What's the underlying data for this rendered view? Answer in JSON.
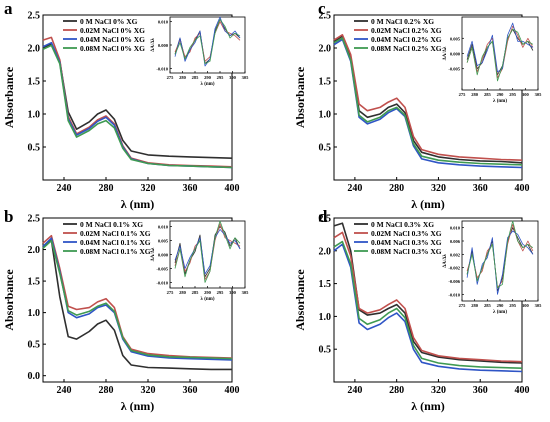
{
  "chart_data": [
    {
      "panel": "a",
      "type": "line",
      "xlabel": "λ (nm)",
      "ylabel": "Absorbance",
      "xlim": [
        220,
        400
      ],
      "ylim": [
        0,
        2.5
      ],
      "xticks": [
        240,
        280,
        320,
        360,
        400
      ],
      "yticks": [
        0.5,
        1.0,
        1.5,
        2.0,
        2.5
      ],
      "legend_placement": "top-center",
      "x": [
        220,
        228,
        236,
        244,
        252,
        264,
        272,
        280,
        288,
        296,
        304,
        320,
        340,
        360,
        380,
        400
      ],
      "series": [
        {
          "name": "0   M NaCl  0% XG",
          "color": "#2f2f2f",
          "values": [
            2.0,
            2.06,
            1.8,
            1.03,
            0.77,
            0.88,
            1.0,
            1.06,
            0.92,
            0.6,
            0.44,
            0.38,
            0.36,
            0.35,
            0.34,
            0.33
          ]
        },
        {
          "name": "0.02M NaCl  0% XG",
          "color": "#c0504d",
          "values": [
            2.12,
            2.16,
            1.82,
            0.96,
            0.7,
            0.8,
            0.91,
            0.97,
            0.85,
            0.52,
            0.33,
            0.26,
            0.23,
            0.22,
            0.21,
            0.2
          ]
        },
        {
          "name": "0.04M NaCl  0% XG",
          "color": "#2f55c6",
          "values": [
            2.02,
            2.08,
            1.78,
            0.93,
            0.68,
            0.78,
            0.89,
            0.95,
            0.83,
            0.5,
            0.32,
            0.25,
            0.22,
            0.21,
            0.2,
            0.19
          ]
        },
        {
          "name": "0.08M NaCl  0% XG",
          "color": "#3f9a52",
          "values": [
            1.98,
            2.04,
            1.76,
            0.9,
            0.65,
            0.75,
            0.85,
            0.9,
            0.79,
            0.48,
            0.31,
            0.25,
            0.22,
            0.21,
            0.2,
            0.19
          ]
        }
      ],
      "inset": {
        "ylabel": "ΔA/Δλ",
        "xlabel": "λ (nm)",
        "xlim": [
          275,
          305
        ],
        "ylim": [
          -0.012,
          0.012
        ],
        "xticks": [
          275,
          280,
          285,
          290,
          295,
          300,
          305
        ],
        "yticks": [
          -0.01,
          0.0,
          0.01
        ],
        "x": [
          277,
          279,
          281,
          283,
          285,
          287,
          289,
          291,
          293,
          295,
          297,
          299,
          301,
          303
        ],
        "series_values": [
          [
            -0.004,
            0.003,
            -0.006,
            -0.002,
            0.002,
            0.006,
            -0.008,
            -0.006,
            0.006,
            0.011,
            0.007,
            0.004,
            0.005,
            0.003
          ],
          [
            -0.003,
            0.002,
            -0.005,
            -0.003,
            0.003,
            0.005,
            -0.007,
            -0.005,
            0.005,
            0.01,
            0.006,
            0.005,
            0.004,
            0.002
          ],
          [
            -0.005,
            0.003,
            -0.007,
            -0.002,
            0.001,
            0.006,
            -0.009,
            -0.006,
            0.007,
            0.012,
            0.006,
            0.004,
            0.006,
            0.003
          ],
          [
            -0.004,
            0.001,
            -0.006,
            -0.001,
            0.002,
            0.004,
            -0.008,
            -0.007,
            0.005,
            0.011,
            0.008,
            0.003,
            0.005,
            0.004
          ]
        ]
      }
    },
    {
      "panel": "b",
      "type": "line",
      "xlabel": "λ (nm)",
      "ylabel": "Absorbance",
      "xlim": [
        220,
        400
      ],
      "ylim": [
        -0.1,
        2.5
      ],
      "xticks": [
        240,
        280,
        320,
        360,
        400
      ],
      "yticks": [
        0.0,
        0.5,
        1.0,
        1.5,
        2.0,
        2.5
      ],
      "legend_placement": "top-center",
      "x": [
        220,
        228,
        236,
        244,
        252,
        264,
        272,
        280,
        288,
        296,
        304,
        320,
        340,
        360,
        380,
        400
      ],
      "series": [
        {
          "name": "0   M NaCl  0.1% XG",
          "color": "#2f2f2f",
          "values": [
            2.05,
            2.15,
            1.25,
            0.62,
            0.58,
            0.7,
            0.82,
            0.88,
            0.72,
            0.32,
            0.17,
            0.13,
            0.12,
            0.11,
            0.1,
            0.1
          ]
        },
        {
          "name": "0.02M NaCl  0.1% XG",
          "color": "#c0504d",
          "values": [
            2.1,
            2.22,
            1.7,
            1.1,
            1.05,
            1.08,
            1.17,
            1.22,
            1.08,
            0.62,
            0.42,
            0.35,
            0.32,
            0.3,
            0.29,
            0.28
          ]
        },
        {
          "name": "0.04M NaCl  0.1% XG",
          "color": "#2f55c6",
          "values": [
            2.05,
            2.18,
            1.65,
            1.0,
            0.92,
            0.98,
            1.08,
            1.12,
            1.0,
            0.58,
            0.38,
            0.31,
            0.28,
            0.27,
            0.26,
            0.25
          ]
        },
        {
          "name": "0.08M NaCl  0.1% XG",
          "color": "#3f9a52",
          "values": [
            2.02,
            2.14,
            1.62,
            1.03,
            0.96,
            1.02,
            1.1,
            1.15,
            1.02,
            0.6,
            0.4,
            0.33,
            0.3,
            0.29,
            0.28,
            0.27
          ]
        }
      ],
      "inset": {
        "ylabel": "ΔA/Δλ",
        "xlabel": "λ (nm)",
        "xlim": [
          275,
          305
        ],
        "ylim": [
          -0.012,
          0.012
        ],
        "xticks": [
          275,
          280,
          285,
          290,
          295,
          300,
          305
        ],
        "yticks": [
          -0.01,
          -0.005,
          0.0,
          0.005,
          0.01
        ],
        "x": [
          277,
          279,
          281,
          283,
          285,
          287,
          289,
          291,
          293,
          295,
          297,
          299,
          301,
          303
        ],
        "series_values": [
          [
            -0.003,
            0.004,
            -0.007,
            -0.002,
            0.001,
            0.007,
            -0.008,
            -0.005,
            0.007,
            0.01,
            0.008,
            0.003,
            0.006,
            0.002
          ],
          [
            -0.004,
            0.002,
            -0.006,
            -0.003,
            0.003,
            0.005,
            -0.009,
            -0.006,
            0.005,
            0.011,
            0.006,
            0.005,
            0.004,
            0.003
          ],
          [
            -0.002,
            0.003,
            -0.005,
            -0.001,
            0.002,
            0.006,
            -0.007,
            -0.004,
            0.006,
            0.009,
            0.007,
            0.004,
            0.005,
            0.002
          ],
          [
            -0.005,
            0.002,
            -0.008,
            -0.002,
            0.002,
            0.005,
            -0.01,
            -0.006,
            0.006,
            0.012,
            0.007,
            0.002,
            0.006,
            0.004
          ]
        ]
      }
    },
    {
      "panel": "c",
      "type": "line",
      "xlabel": "λ (nm)",
      "ylabel": "Absorbance",
      "xlim": [
        220,
        400
      ],
      "ylim": [
        0,
        2.5
      ],
      "xticks": [
        240,
        280,
        320,
        360,
        400
      ],
      "yticks": [
        0.5,
        1.0,
        1.5,
        2.0,
        2.5
      ],
      "legend_placement": "top-center",
      "x": [
        220,
        228,
        236,
        244,
        252,
        264,
        272,
        280,
        288,
        296,
        304,
        320,
        340,
        360,
        380,
        400
      ],
      "series": [
        {
          "name": "0   M NaCl  0.2% XG",
          "color": "#2f2f2f",
          "values": [
            2.1,
            2.18,
            1.85,
            1.05,
            0.95,
            1.0,
            1.1,
            1.15,
            1.02,
            0.6,
            0.42,
            0.35,
            0.31,
            0.29,
            0.28,
            0.26
          ]
        },
        {
          "name": "0.02M NaCl  0.2% XG",
          "color": "#c0504d",
          "values": [
            2.12,
            2.2,
            1.9,
            1.15,
            1.05,
            1.1,
            1.18,
            1.24,
            1.1,
            0.66,
            0.46,
            0.39,
            0.35,
            0.33,
            0.31,
            0.3
          ]
        },
        {
          "name": "0.04M NaCl  0.2% XG",
          "color": "#2f55c6",
          "values": [
            2.05,
            2.13,
            1.8,
            0.95,
            0.85,
            0.92,
            1.02,
            1.08,
            0.96,
            0.52,
            0.32,
            0.26,
            0.23,
            0.21,
            0.2,
            0.19
          ]
        },
        {
          "name": "0.08M NaCl  0.2% XG",
          "color": "#3f9a52",
          "values": [
            2.08,
            2.15,
            1.82,
            0.98,
            0.88,
            0.95,
            1.05,
            1.1,
            0.98,
            0.55,
            0.36,
            0.3,
            0.27,
            0.25,
            0.24,
            0.23
          ]
        }
      ],
      "inset": {
        "ylabel": "ΔA/Δλ",
        "xlabel": "λ (nm)",
        "xlim": [
          275,
          305
        ],
        "ylim": [
          -0.012,
          0.012
        ],
        "xticks": [
          275,
          280,
          285,
          290,
          295,
          300,
          305
        ],
        "yticks": [
          -0.005,
          0.0,
          0.005
        ],
        "x": [
          277,
          279,
          281,
          283,
          285,
          287,
          289,
          291,
          293,
          295,
          297,
          299,
          301,
          303
        ],
        "series_values": [
          [
            -0.002,
            0.003,
            -0.005,
            -0.003,
            0.002,
            0.004,
            -0.007,
            -0.004,
            0.005,
            0.008,
            0.005,
            0.003,
            0.004,
            0.001
          ],
          [
            -0.003,
            0.002,
            -0.006,
            -0.002,
            0.003,
            0.005,
            -0.008,
            -0.005,
            0.004,
            0.009,
            0.006,
            0.002,
            0.005,
            0.002
          ],
          [
            -0.001,
            0.004,
            -0.004,
            -0.003,
            0.001,
            0.006,
            -0.006,
            -0.005,
            0.006,
            0.01,
            0.004,
            0.004,
            0.003,
            0.002
          ],
          [
            -0.003,
            0.002,
            -0.007,
            -0.001,
            0.002,
            0.004,
            -0.009,
            -0.004,
            0.005,
            0.008,
            0.007,
            0.003,
            0.004,
            0.003
          ]
        ]
      }
    },
    {
      "panel": "d",
      "type": "line",
      "xlabel": "λ (nm)",
      "ylabel": "Absorbance",
      "xlim": [
        220,
        400
      ],
      "ylim": [
        0,
        2.5
      ],
      "xticks": [
        240,
        280,
        320,
        360,
        400
      ],
      "yticks": [
        0.5,
        1.0,
        1.5,
        2.0,
        2.5
      ],
      "legend_placement": "top-center",
      "x": [
        220,
        228,
        236,
        244,
        252,
        264,
        272,
        280,
        288,
        296,
        304,
        320,
        340,
        360,
        380,
        400
      ],
      "series": [
        {
          "name": "0   M NaCl  0.3% XG",
          "color": "#2f2f2f",
          "values": [
            2.38,
            2.42,
            2.0,
            1.1,
            1.02,
            1.05,
            1.12,
            1.18,
            1.05,
            0.62,
            0.45,
            0.38,
            0.34,
            0.32,
            0.3,
            0.29
          ]
        },
        {
          "name": "0.02M NaCl  0.3% XG",
          "color": "#c0504d",
          "values": [
            2.2,
            2.28,
            1.92,
            1.12,
            1.05,
            1.1,
            1.18,
            1.25,
            1.12,
            0.68,
            0.48,
            0.4,
            0.36,
            0.34,
            0.32,
            0.31
          ]
        },
        {
          "name": "0.04M NaCl  0.3% XG",
          "color": "#2f55c6",
          "values": [
            2.0,
            2.1,
            1.75,
            0.9,
            0.8,
            0.88,
            0.98,
            1.05,
            0.92,
            0.5,
            0.3,
            0.24,
            0.2,
            0.18,
            0.17,
            0.16
          ]
        },
        {
          "name": "0.08M NaCl  0.3% XG",
          "color": "#3f9a52",
          "values": [
            2.06,
            2.14,
            1.8,
            0.97,
            0.88,
            0.95,
            1.05,
            1.12,
            0.98,
            0.56,
            0.36,
            0.29,
            0.25,
            0.23,
            0.22,
            0.21
          ]
        }
      ],
      "inset": {
        "ylabel": "ΔA/Δλ",
        "xlabel": "λ (nm)",
        "xlim": [
          275,
          305
        ],
        "ylim": [
          -0.012,
          0.012
        ],
        "xticks": [
          275,
          280,
          285,
          290,
          295,
          300,
          305
        ],
        "yticks": [
          -0.01,
          -0.006,
          -0.002,
          0.002,
          0.006,
          0.01
        ],
        "x": [
          277,
          279,
          281,
          283,
          285,
          287,
          289,
          291,
          293,
          295,
          297,
          299,
          301,
          303
        ],
        "series_values": [
          [
            -0.004,
            0.003,
            -0.006,
            -0.002,
            0.002,
            0.006,
            -0.009,
            -0.005,
            0.006,
            0.01,
            0.007,
            0.004,
            0.005,
            0.002
          ],
          [
            -0.003,
            0.002,
            -0.005,
            -0.003,
            0.003,
            0.005,
            -0.008,
            -0.006,
            0.005,
            0.011,
            0.006,
            0.003,
            0.006,
            0.003
          ],
          [
            -0.005,
            0.004,
            -0.007,
            -0.001,
            0.001,
            0.007,
            -0.01,
            -0.004,
            0.007,
            0.009,
            0.008,
            0.005,
            0.004,
            0.002
          ],
          [
            -0.004,
            0.002,
            -0.006,
            -0.002,
            0.002,
            0.005,
            -0.008,
            -0.007,
            0.006,
            0.012,
            0.006,
            0.004,
            0.005,
            0.004
          ]
        ]
      }
    }
  ]
}
